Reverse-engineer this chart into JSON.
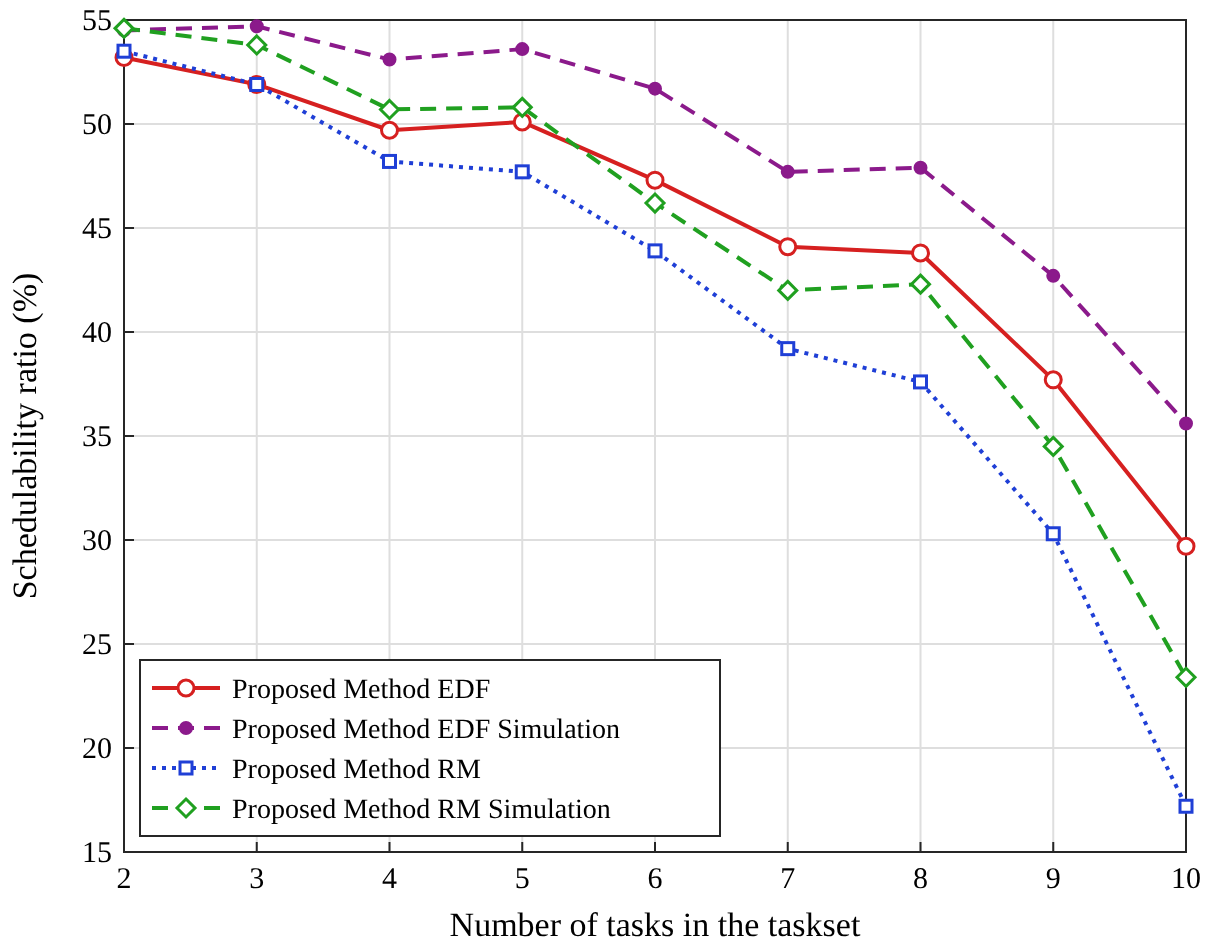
{
  "chart_data": {
    "type": "line",
    "xlabel": "Number of tasks in the taskset",
    "ylabel": "Schedulability ratio (%)",
    "x": [
      2,
      3,
      4,
      5,
      6,
      7,
      8,
      9,
      10
    ],
    "xlim": [
      2,
      10
    ],
    "xticks": [
      2,
      3,
      4,
      5,
      6,
      7,
      8,
      9,
      10
    ],
    "ylim": [
      15,
      55
    ],
    "yticks": [
      15,
      20,
      25,
      30,
      35,
      40,
      45,
      50,
      55
    ],
    "grid": true,
    "legend": "bottom left",
    "series": [
      {
        "name": "Proposed Method EDF",
        "color": "#d62020",
        "marker": "circle",
        "line_style": "solid",
        "values": [
          53.2,
          51.9,
          49.7,
          50.1,
          47.3,
          44.1,
          43.8,
          37.7,
          29.7
        ]
      },
      {
        "name": "Proposed Method EDF Simulation",
        "color": "#8b1a8b",
        "marker": "circle",
        "line_style": "dashed",
        "values": [
          54.5,
          54.7,
          53.1,
          53.6,
          51.7,
          47.7,
          47.9,
          42.7,
          35.6
        ]
      },
      {
        "name": "Proposed Method RM",
        "color": "#1f3fd6",
        "marker": "square",
        "line_style": "dotted",
        "values": [
          53.5,
          51.9,
          48.2,
          47.7,
          43.9,
          39.2,
          37.6,
          30.3,
          17.2
        ]
      },
      {
        "name": "Proposed Method RM Simulation",
        "color": "#20a020",
        "marker": "diamond",
        "line_style": "dashed",
        "values": [
          54.6,
          53.8,
          50.7,
          50.8,
          46.2,
          42.0,
          42.3,
          34.5,
          23.4
        ]
      }
    ]
  }
}
